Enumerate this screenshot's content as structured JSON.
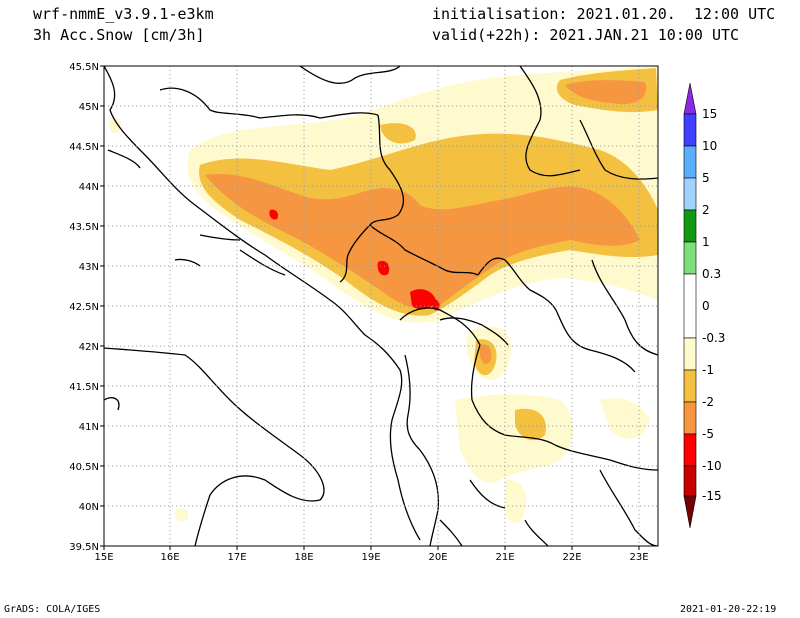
{
  "header": {
    "model": "wrf-nmmE_v3.9.1-e3km",
    "field": "3h Acc.Snow [cm/3h]",
    "init": "initialisation: 2021.01.20.  12:00 UTC",
    "valid": "valid(+22h): 2021.JAN.21 10:00 UTC"
  },
  "footer": {
    "left": "GrADS: COLA/IGES",
    "right": "2021-01-20-22:19"
  },
  "axes": {
    "lon_labels": [
      "15E",
      "16E",
      "17E",
      "18E",
      "19E",
      "20E",
      "21E",
      "22E",
      "23E"
    ],
    "lat_labels": [
      "45.5N",
      "45N",
      "44.5N",
      "44N",
      "43.5N",
      "43N",
      "42.5N",
      "42N",
      "41.5N",
      "41N",
      "40.5N",
      "40N",
      "39.5N"
    ],
    "lon_range": [
      15,
      23.3
    ],
    "lat_range": [
      39.5,
      45.5
    ]
  },
  "colorbar": {
    "labels": [
      "15",
      "10",
      "5",
      "2",
      "1",
      "0.3",
      "0",
      "-0.3",
      "-1",
      "-2",
      "-5",
      "-10",
      "-15"
    ],
    "colors": [
      "#7f00ff",
      "#4040ff",
      "#5ab0ff",
      "#a0d2ff",
      "#119911",
      "#7be07b",
      "#ffffff",
      "#ffffff",
      "#fffacd",
      "#f4c040",
      "#f79640",
      "#ff0000",
      "#c80000",
      "#780000"
    ]
  },
  "map_style": {
    "light_snow": "#fffacd",
    "moderate_snow": "#f4c040",
    "heavy_snow": "#f79640",
    "extreme_snow": "#ff0000"
  }
}
